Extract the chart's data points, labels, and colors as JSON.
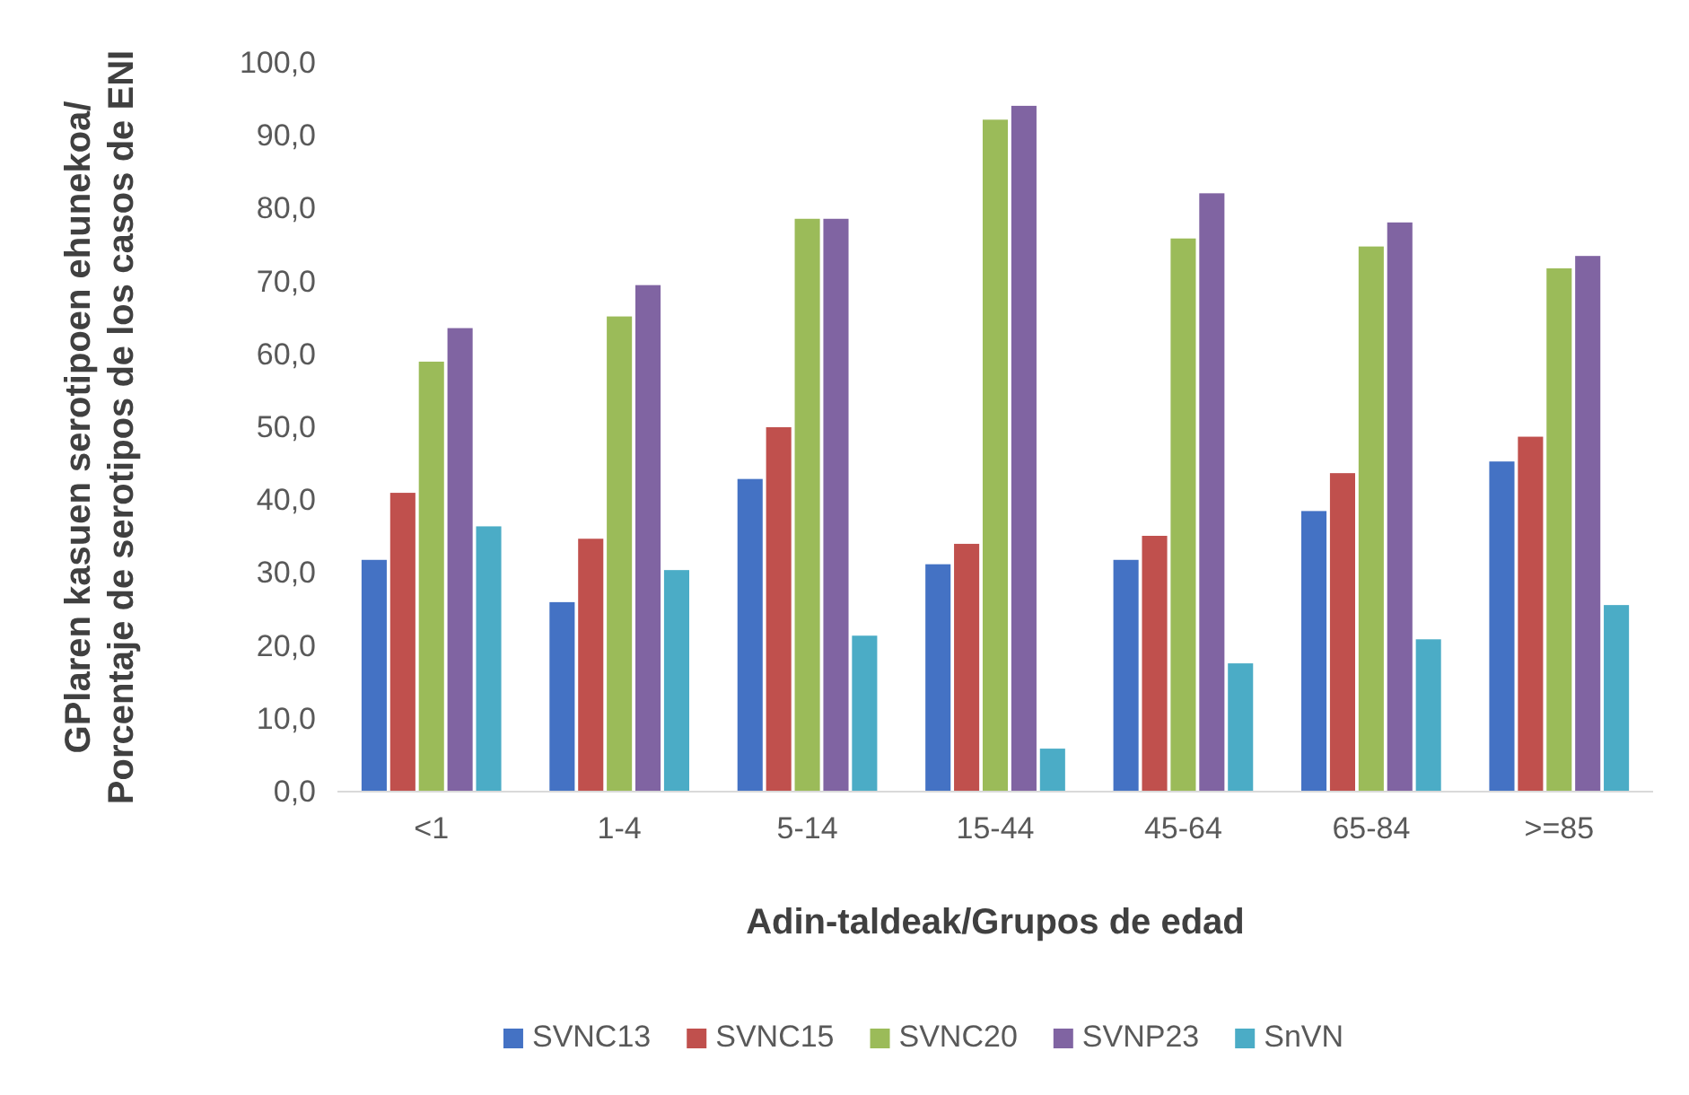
{
  "chart_data": {
    "type": "bar",
    "xlabel": "Adin-taldeak/Grupos de edad",
    "ylabel": "GPlaren kasuen serotipoen ehunekoa/\nPorcentaje de serotipos de los casos de ENI",
    "categories": [
      "<1",
      "1-4",
      "5-14",
      "15-44",
      "45-64",
      "65-84",
      ">=85"
    ],
    "series": [
      {
        "name": "SVNC13",
        "color": "#4472c4",
        "values": [
          31.8,
          26.0,
          42.9,
          31.2,
          31.8,
          38.5,
          45.3
        ]
      },
      {
        "name": "SVNC15",
        "color": "#c0504d",
        "values": [
          41.0,
          34.7,
          50.0,
          34.0,
          35.1,
          43.7,
          48.7
        ]
      },
      {
        "name": "SVNC20",
        "color": "#9bbb59",
        "values": [
          59.0,
          65.2,
          78.6,
          92.2,
          75.9,
          74.8,
          71.8
        ]
      },
      {
        "name": "SVNP23",
        "color": "#8064a2",
        "values": [
          63.6,
          69.5,
          78.6,
          94.1,
          82.1,
          78.1,
          73.5
        ]
      },
      {
        "name": "SnVN",
        "color": "#4bacc6",
        "values": [
          36.4,
          30.4,
          21.4,
          5.9,
          17.6,
          20.9,
          25.6
        ]
      }
    ],
    "ylim": [
      0,
      100
    ],
    "yticks": [
      {
        "value": 0,
        "label": "0,0"
      },
      {
        "value": 10,
        "label": "10,0"
      },
      {
        "value": 20,
        "label": "20,0"
      },
      {
        "value": 30,
        "label": "30,0"
      },
      {
        "value": 40,
        "label": "40,0"
      },
      {
        "value": 50,
        "label": "50,0"
      },
      {
        "value": 60,
        "label": "60,0"
      },
      {
        "value": 70,
        "label": "70,0"
      },
      {
        "value": 80,
        "label": "80,0"
      },
      {
        "value": 90,
        "label": "90,0"
      },
      {
        "value": 100,
        "label": "100,0"
      }
    ],
    "grid": false,
    "legend": "bottom"
  }
}
